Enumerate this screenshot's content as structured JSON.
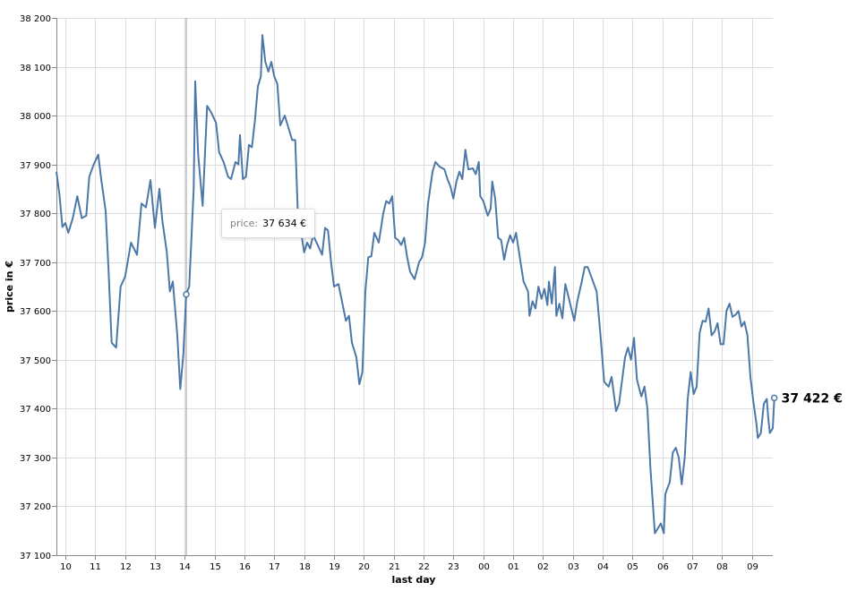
{
  "chart_data": {
    "type": "line",
    "xlabel": "last day",
    "ylabel": "price in €",
    "ylim": [
      37100,
      38200
    ],
    "y_ticks": [
      37100,
      37200,
      37300,
      37400,
      37500,
      37600,
      37700,
      37800,
      37900,
      38000,
      38100,
      38200
    ],
    "y_tick_labels": [
      "37 100",
      "37 200",
      "37 300",
      "37 400",
      "37 500",
      "37 600",
      "37 700",
      "37 800",
      "37 900",
      "38 000",
      "38 100",
      "38 200"
    ],
    "x_range_hours": [
      -0.3,
      23.7
    ],
    "x_ticks": [
      0,
      1,
      2,
      3,
      4,
      5,
      6,
      7,
      8,
      9,
      10,
      11,
      12,
      13,
      14,
      15,
      16,
      17,
      18,
      19,
      20,
      21,
      22,
      23
    ],
    "x_tick_labels": [
      "10",
      "11",
      "12",
      "13",
      "14",
      "15",
      "16",
      "17",
      "18",
      "19",
      "20",
      "21",
      "22",
      "23",
      "00",
      "01",
      "02",
      "03",
      "04",
      "05",
      "06",
      "07",
      "08",
      "09"
    ],
    "grid": true,
    "line_color": "#4c78a8",
    "series": [
      {
        "values": [
          [
            -0.3,
            37885
          ],
          [
            -0.2,
            37840
          ],
          [
            -0.1,
            37772
          ],
          [
            0.0,
            37780
          ],
          [
            0.1,
            37760
          ],
          [
            0.25,
            37790
          ],
          [
            0.4,
            37835
          ],
          [
            0.55,
            37790
          ],
          [
            0.7,
            37795
          ],
          [
            0.8,
            37875
          ],
          [
            0.95,
            37900
          ],
          [
            1.1,
            37920
          ],
          [
            1.2,
            37870
          ],
          [
            1.35,
            37805
          ],
          [
            1.45,
            37680
          ],
          [
            1.55,
            37535
          ],
          [
            1.7,
            37525
          ],
          [
            1.85,
            37650
          ],
          [
            2.0,
            37670
          ],
          [
            2.2,
            37740
          ],
          [
            2.4,
            37715
          ],
          [
            2.55,
            37820
          ],
          [
            2.7,
            37812
          ],
          [
            2.85,
            37868
          ],
          [
            3.0,
            37770
          ],
          [
            3.15,
            37850
          ],
          [
            3.25,
            37785
          ],
          [
            3.4,
            37720
          ],
          [
            3.5,
            37640
          ],
          [
            3.6,
            37660
          ],
          [
            3.75,
            37550
          ],
          [
            3.85,
            37440
          ],
          [
            3.95,
            37510
          ],
          [
            4.05,
            37634
          ],
          [
            4.15,
            37650
          ],
          [
            4.3,
            37850
          ],
          [
            4.35,
            38070
          ],
          [
            4.45,
            37920
          ],
          [
            4.6,
            37815
          ],
          [
            4.75,
            38020
          ],
          [
            4.9,
            38005
          ],
          [
            5.05,
            37985
          ],
          [
            5.15,
            37925
          ],
          [
            5.3,
            37905
          ],
          [
            5.45,
            37875
          ],
          [
            5.55,
            37870
          ],
          [
            5.7,
            37905
          ],
          [
            5.8,
            37900
          ],
          [
            5.85,
            37960
          ],
          [
            5.95,
            37870
          ],
          [
            6.05,
            37875
          ],
          [
            6.15,
            37940
          ],
          [
            6.25,
            37935
          ],
          [
            6.35,
            37990
          ],
          [
            6.45,
            38060
          ],
          [
            6.55,
            38080
          ],
          [
            6.6,
            38165
          ],
          [
            6.7,
            38110
          ],
          [
            6.8,
            38090
          ],
          [
            6.9,
            38110
          ],
          [
            7.0,
            38080
          ],
          [
            7.1,
            38065
          ],
          [
            7.2,
            37980
          ],
          [
            7.35,
            38000
          ],
          [
            7.45,
            37980
          ],
          [
            7.6,
            37950
          ],
          [
            7.7,
            37950
          ],
          [
            7.8,
            37780
          ],
          [
            7.9,
            37760
          ],
          [
            8.0,
            37720
          ],
          [
            8.1,
            37740
          ],
          [
            8.2,
            37728
          ],
          [
            8.3,
            37755
          ],
          [
            8.45,
            37735
          ],
          [
            8.6,
            37715
          ],
          [
            8.7,
            37770
          ],
          [
            8.8,
            37765
          ],
          [
            8.9,
            37700
          ],
          [
            9.0,
            37650
          ],
          [
            9.15,
            37655
          ],
          [
            9.25,
            37625
          ],
          [
            9.4,
            37580
          ],
          [
            9.5,
            37590
          ],
          [
            9.6,
            37535
          ],
          [
            9.75,
            37505
          ],
          [
            9.85,
            37450
          ],
          [
            9.95,
            37475
          ],
          [
            10.05,
            37640
          ],
          [
            10.15,
            37710
          ],
          [
            10.25,
            37712
          ],
          [
            10.35,
            37760
          ],
          [
            10.5,
            37740
          ],
          [
            10.65,
            37800
          ],
          [
            10.75,
            37825
          ],
          [
            10.85,
            37820
          ],
          [
            10.95,
            37835
          ],
          [
            11.05,
            37750
          ],
          [
            11.15,
            37745
          ],
          [
            11.25,
            37735
          ],
          [
            11.35,
            37750
          ],
          [
            11.45,
            37710
          ],
          [
            11.55,
            37680
          ],
          [
            11.7,
            37665
          ],
          [
            11.85,
            37700
          ],
          [
            11.95,
            37710
          ],
          [
            12.05,
            37740
          ],
          [
            12.15,
            37820
          ],
          [
            12.3,
            37885
          ],
          [
            12.4,
            37905
          ],
          [
            12.55,
            37895
          ],
          [
            12.7,
            37890
          ],
          [
            12.8,
            37870
          ],
          [
            12.9,
            37855
          ],
          [
            13.0,
            37830
          ],
          [
            13.1,
            37865
          ],
          [
            13.2,
            37885
          ],
          [
            13.3,
            37870
          ],
          [
            13.4,
            37930
          ],
          [
            13.5,
            37890
          ],
          [
            13.65,
            37892
          ],
          [
            13.75,
            37880
          ],
          [
            13.85,
            37905
          ],
          [
            13.9,
            37835
          ],
          [
            14.0,
            37825
          ],
          [
            14.15,
            37795
          ],
          [
            14.25,
            37810
          ],
          [
            14.3,
            37865
          ],
          [
            14.4,
            37830
          ],
          [
            14.5,
            37750
          ],
          [
            14.6,
            37745
          ],
          [
            14.7,
            37705
          ],
          [
            14.8,
            37735
          ],
          [
            14.9,
            37755
          ],
          [
            15.0,
            37740
          ],
          [
            15.1,
            37760
          ],
          [
            15.25,
            37700
          ],
          [
            15.35,
            37660
          ],
          [
            15.5,
            37640
          ],
          [
            15.55,
            37590
          ],
          [
            15.65,
            37620
          ],
          [
            15.75,
            37605
          ],
          [
            15.85,
            37650
          ],
          [
            15.95,
            37625
          ],
          [
            16.05,
            37645
          ],
          [
            16.15,
            37612
          ],
          [
            16.2,
            37660
          ],
          [
            16.3,
            37615
          ],
          [
            16.4,
            37690
          ],
          [
            16.45,
            37590
          ],
          [
            16.55,
            37615
          ],
          [
            16.65,
            37585
          ],
          [
            16.75,
            37655
          ],
          [
            16.85,
            37630
          ],
          [
            16.95,
            37605
          ],
          [
            17.05,
            37580
          ],
          [
            17.15,
            37620
          ],
          [
            17.3,
            37660
          ],
          [
            17.4,
            37690
          ],
          [
            17.5,
            37690
          ],
          [
            17.65,
            37665
          ],
          [
            17.8,
            37640
          ],
          [
            17.95,
            37535
          ],
          [
            18.05,
            37455
          ],
          [
            18.2,
            37445
          ],
          [
            18.3,
            37465
          ],
          [
            18.45,
            37395
          ],
          [
            18.55,
            37410
          ],
          [
            18.75,
            37505
          ],
          [
            18.85,
            37525
          ],
          [
            18.95,
            37500
          ],
          [
            19.05,
            37545
          ],
          [
            19.15,
            37460
          ],
          [
            19.25,
            37435
          ],
          [
            19.3,
            37425
          ],
          [
            19.4,
            37445
          ],
          [
            19.5,
            37400
          ],
          [
            19.6,
            37280
          ],
          [
            19.75,
            37145
          ],
          [
            19.85,
            37155
          ],
          [
            19.95,
            37165
          ],
          [
            20.05,
            37145
          ],
          [
            20.1,
            37225
          ],
          [
            20.25,
            37250
          ],
          [
            20.35,
            37310
          ],
          [
            20.45,
            37320
          ],
          [
            20.55,
            37300
          ],
          [
            20.65,
            37245
          ],
          [
            20.75,
            37300
          ],
          [
            20.85,
            37420
          ],
          [
            20.95,
            37475
          ],
          [
            21.05,
            37430
          ],
          [
            21.15,
            37445
          ],
          [
            21.25,
            37555
          ],
          [
            21.35,
            37580
          ],
          [
            21.45,
            37578
          ],
          [
            21.55,
            37605
          ],
          [
            21.65,
            37550
          ],
          [
            21.75,
            37558
          ],
          [
            21.85,
            37575
          ],
          [
            21.95,
            37532
          ],
          [
            22.05,
            37532
          ],
          [
            22.15,
            37600
          ],
          [
            22.25,
            37615
          ],
          [
            22.35,
            37588
          ],
          [
            22.45,
            37592
          ],
          [
            22.55,
            37600
          ],
          [
            22.65,
            37568
          ],
          [
            22.75,
            37578
          ],
          [
            22.85,
            37550
          ],
          [
            22.95,
            37465
          ],
          [
            23.05,
            37415
          ],
          [
            23.15,
            37370
          ],
          [
            23.2,
            37340
          ],
          [
            23.3,
            37350
          ],
          [
            23.4,
            37410
          ],
          [
            23.5,
            37420
          ],
          [
            23.55,
            37380
          ],
          [
            23.6,
            37350
          ],
          [
            23.7,
            37360
          ],
          [
            23.75,
            37422
          ]
        ]
      }
    ],
    "end_point": {
      "x": 23.75,
      "y": 37422,
      "label": "37 422 €"
    },
    "hover": {
      "x": 4.05,
      "y": 37634,
      "tooltip_key": "price:",
      "tooltip_value": "37 634 €"
    }
  }
}
